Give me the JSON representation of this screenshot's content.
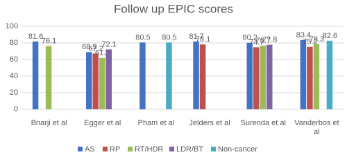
{
  "chart_data": {
    "type": "bar",
    "title": "Follow up EPIC scores",
    "categories": [
      "Bnarji et al",
      "Egger et al",
      "Pham et al",
      "Jelders et al",
      "Surenda et al",
      "Vanderbos et al"
    ],
    "series": [
      {
        "name": "AS",
        "color": "#4472c4",
        "values": [
          81.6,
          68.9,
          80.5,
          81.7,
          80.2,
          83.4
        ]
      },
      {
        "name": "RP",
        "color": "#c0504d",
        "values": [
          null,
          67.2,
          null,
          78.1,
          74.7,
          75.2
        ]
      },
      {
        "name": "RT/HDR",
        "color": "#9bbb59",
        "values": [
          76.1,
          61.9,
          null,
          null,
          76.7,
          78.3
        ]
      },
      {
        "name": "LDR/BT",
        "color": "#8064a2",
        "values": [
          null,
          72.1,
          null,
          null,
          77.8,
          null
        ]
      },
      {
        "name": "Non-cancer",
        "color": "#4bacc6",
        "values": [
          null,
          null,
          80.5,
          null,
          null,
          82.6
        ]
      }
    ],
    "ylim": [
      0,
      100
    ],
    "yticks": [
      0,
      20,
      40,
      60,
      80,
      100
    ],
    "grid": true,
    "legend": "bottom"
  }
}
